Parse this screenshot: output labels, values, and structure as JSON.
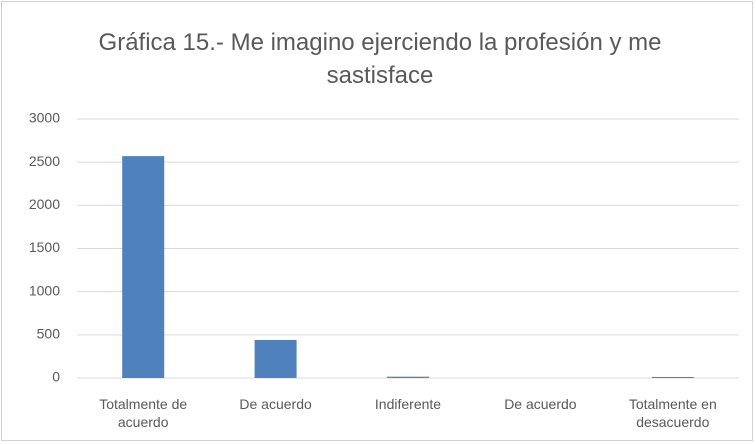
{
  "chart_data": {
    "type": "bar",
    "title": "Gráfica 15.- Me imagino ejerciendo la profesión y me sastisface",
    "categories": [
      "Totalmente de acuerdo",
      "De acuerdo",
      "Indiferente",
      "De acuerdo",
      "Totalmente en desacuerdo"
    ],
    "values": [
      2570,
      440,
      15,
      0,
      12
    ],
    "color": "#4f81bd",
    "ylim": [
      0,
      3000
    ],
    "yticks": [
      0,
      500,
      1000,
      1500,
      2000,
      2500,
      3000
    ],
    "grid": true
  }
}
